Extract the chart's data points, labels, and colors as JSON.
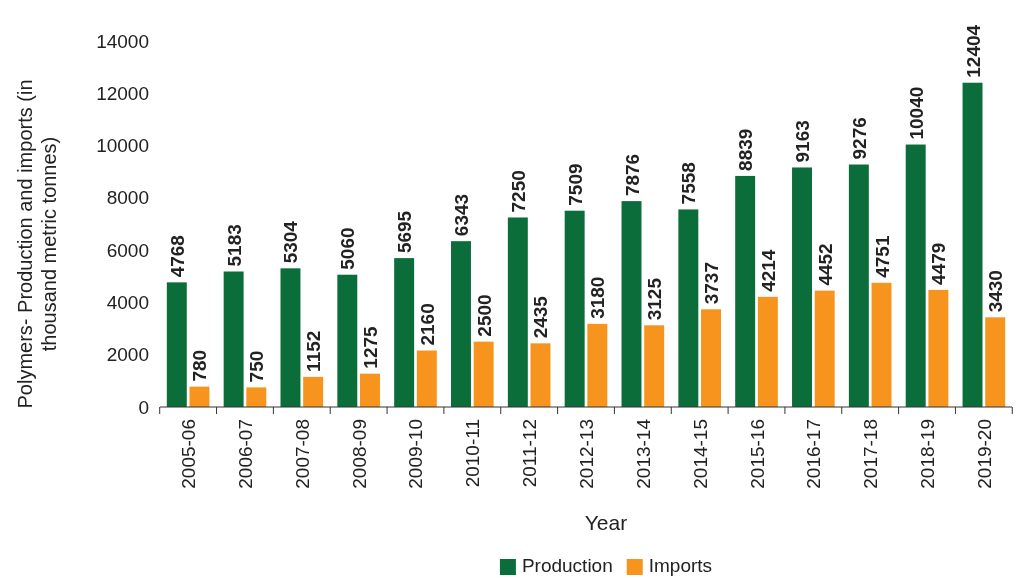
{
  "chart_data": {
    "type": "bar",
    "xlabel": "Year",
    "ylabel": "Polymers- Production  and imports (in thousand metric tonnes)",
    "categories": [
      "2005-06",
      "2006-07",
      "2007-08",
      "2008-09",
      "2009-10",
      "2010-11",
      "2011-12",
      "2012-13",
      "2013-14",
      "2014-15",
      "2015-16",
      "2016-17",
      "2017-18",
      "2018-19",
      "2019-20"
    ],
    "series": [
      {
        "name": "Production",
        "color": "#0b6e3a",
        "values": [
          4768,
          5183,
          5304,
          5060,
          5695,
          6343,
          7250,
          7509,
          7876,
          7558,
          8839,
          9163,
          9276,
          10040,
          12404
        ]
      },
      {
        "name": "Imports",
        "color": "#f7941d",
        "values": [
          780,
          750,
          1152,
          1275,
          2160,
          2500,
          2435,
          3180,
          3125,
          3737,
          4214,
          4452,
          4751,
          4479,
          3430
        ]
      }
    ],
    "ylim": [
      0,
      14000
    ],
    "yticks": [
      0,
      2000,
      4000,
      6000,
      8000,
      10000,
      12000,
      14000
    ],
    "grid": false,
    "data_labels": true,
    "legend": "bottom"
  }
}
